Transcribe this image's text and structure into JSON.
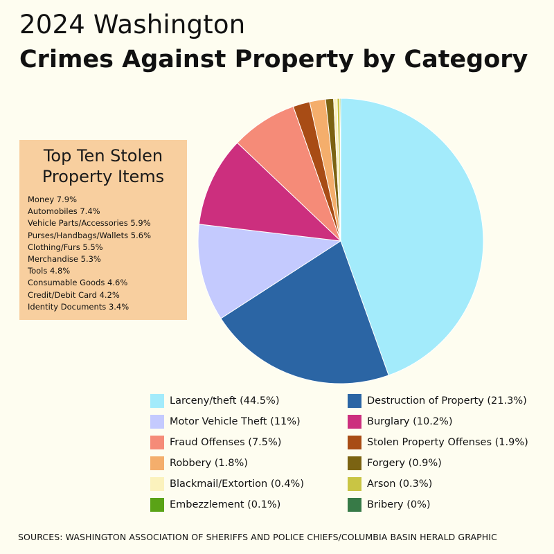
{
  "header": {
    "title_line1": "2024 Washington",
    "title_line2": "Crimes Against Property by Category"
  },
  "chart_data": {
    "type": "pie",
    "slices": [
      {
        "label": "Larceny/theft (44.5%)",
        "value": 44.5,
        "color": "#a3ebfb"
      },
      {
        "label": "Destruction of Property (21.3%)",
        "value": 21.3,
        "color": "#2b65a4"
      },
      {
        "label": "Motor Vehicle Theft (11%)",
        "value": 11,
        "color": "#c4cafe"
      },
      {
        "label": "Burglary (10.2%)",
        "value": 10.2,
        "color": "#cc2f7e"
      },
      {
        "label": "Fraud Offenses (7.5%)",
        "value": 7.5,
        "color": "#f58b78"
      },
      {
        "label": "Stolen Property Offenses (1.9%)",
        "value": 1.9,
        "color": "#a84c15"
      },
      {
        "label": "Robbery (1.8%)",
        "value": 1.8,
        "color": "#f4ae6c"
      },
      {
        "label": "Forgery (0.9%)",
        "value": 0.9,
        "color": "#7b6312"
      },
      {
        "label": "Blackmail/Extortion (0.4%)",
        "value": 0.4,
        "color": "#fbf2bd"
      },
      {
        "label": "Arson (0.3%)",
        "value": 0.3,
        "color": "#c9c544"
      },
      {
        "label": "Embezzlement (0.1%)",
        "value": 0.1,
        "color": "#5aa316"
      },
      {
        "label": "Bribery (0%)",
        "value": 0,
        "color": "#377a47"
      }
    ],
    "legend_placement": "bottom"
  },
  "top_ten": {
    "title": "Top Ten Stolen Property Items",
    "items": [
      "Money 7.9%",
      "Automobiles 7.4%",
      "Vehicle Parts/Accessories 5.9%",
      "Purses/Handbags/Wallets 5.6%",
      "Clothing/Furs 5.5%",
      "Merchandise 5.3%",
      "Tools 4.8%",
      "Consumable Goods 4.6%",
      "Credit/Debit Card 4.2%",
      "Identity Documents 3.4%"
    ]
  },
  "footer": {
    "source": "SOURCES: WASHINGTON ASSOCIATION OF SHERIFFS AND POLICE CHIEFS/COLUMBIA BASIN HERALD GRAPHIC"
  }
}
